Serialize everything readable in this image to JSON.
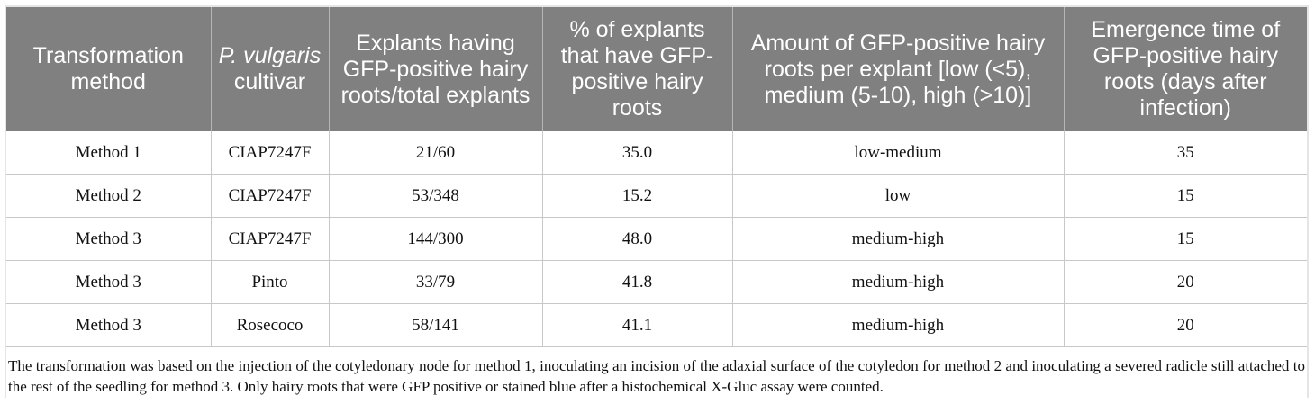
{
  "table": {
    "headers": {
      "transformation_method": "Transformation method",
      "cultivar_italic": "P. vulgaris",
      "cultivar_rest": "cultivar",
      "explants_ratio": "Explants having GFP-positive hairy roots/total explants",
      "percent": "% of explants that have GFP-positive hairy roots",
      "amount": "Amount of GFP-positive hairy roots per explant [low (<5), medium (5-10), high (>10)]",
      "emergence": "Emergence time of GFP-positive hairy roots (days after infection)"
    },
    "rows": [
      {
        "method": "Method 1",
        "cultivar": "CIAP7247F",
        "ratio": "21/60",
        "percent": "35.0",
        "amount": "low-medium",
        "days": "35"
      },
      {
        "method": "Method 2",
        "cultivar": "CIAP7247F",
        "ratio": "53/348",
        "percent": "15.2",
        "amount": "low",
        "days": "15"
      },
      {
        "method": "Method 3",
        "cultivar": "CIAP7247F",
        "ratio": "144/300",
        "percent": "48.0",
        "amount": "medium-high",
        "days": "15"
      },
      {
        "method": "Method 3",
        "cultivar": "Pinto",
        "ratio": "33/79",
        "percent": "41.8",
        "amount": "medium-high",
        "days": "20"
      },
      {
        "method": "Method 3",
        "cultivar": "Rosecoco",
        "ratio": "58/141",
        "percent": "41.1",
        "amount": "medium-high",
        "days": "20"
      }
    ]
  },
  "footnote": "The transformation was based on the injection of the cotyledonary node for method 1, inoculating an incision of the adaxial surface of the cotyledon for method 2 and inoculating a severed radicle still attached to the rest of the seedling for method 3. Only hairy roots that were GFP positive or stained blue after a histochemical X-Gluc assay were counted."
}
